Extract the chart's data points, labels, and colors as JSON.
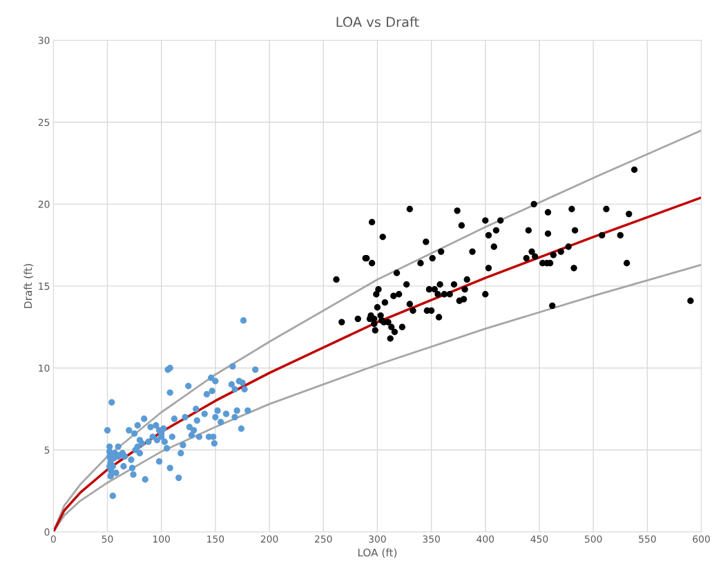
{
  "chart_data": {
    "type": "scatter",
    "title": "LOA vs Draft",
    "xlabel": "LOA (ft)",
    "ylabel": "Draft (ft)",
    "xlim": [
      0,
      600
    ],
    "ylim": [
      0,
      30
    ],
    "xticks": [
      0,
      50,
      100,
      150,
      200,
      250,
      300,
      350,
      400,
      450,
      500,
      550,
      600
    ],
    "yticks": [
      0,
      5,
      10,
      15,
      20,
      25,
      30
    ],
    "grid": true,
    "legend": false,
    "marker": "circle",
    "series": [
      {
        "color": "#5b9bd5",
        "x": [
          50,
          54,
          52,
          52,
          52,
          53,
          53,
          52,
          53,
          54,
          53,
          55,
          55,
          56,
          57,
          58,
          60,
          60,
          62,
          64,
          65,
          66,
          70,
          72,
          73,
          74,
          75,
          76,
          78,
          78,
          80,
          80,
          82,
          84,
          85,
          88,
          90,
          92,
          95,
          96,
          98,
          98,
          100,
          100,
          102,
          103,
          105,
          106,
          108,
          108,
          108,
          110,
          112,
          116,
          118,
          120,
          122,
          125,
          126,
          128,
          130,
          132,
          133,
          135,
          140,
          142,
          144,
          146,
          147,
          148,
          149,
          150,
          150,
          152,
          155,
          160,
          165,
          166,
          168,
          168,
          170,
          172,
          174,
          175,
          176,
          177,
          180,
          187
        ],
        "values": [
          6.2,
          7.9,
          5.2,
          4.9,
          4.6,
          4.4,
          4.2,
          4.0,
          3.8,
          3.6,
          3.4,
          2.2,
          4.0,
          4.5,
          4.8,
          3.6,
          4.6,
          5.2,
          4.7,
          4.8,
          4.0,
          4.6,
          6.2,
          4.4,
          3.9,
          3.5,
          6.0,
          5.0,
          5.2,
          6.5,
          4.8,
          5.6,
          5.4,
          6.9,
          3.2,
          5.5,
          6.4,
          5.8,
          6.5,
          5.6,
          6.2,
          4.3,
          5.8,
          6.0,
          6.3,
          5.5,
          5.1,
          9.9,
          10.0,
          3.9,
          8.5,
          5.8,
          6.9,
          3.3,
          4.8,
          5.3,
          7.0,
          8.9,
          6.4,
          5.9,
          6.2,
          7.5,
          6.8,
          5.8,
          7.2,
          8.4,
          5.8,
          9.4,
          8.6,
          5.8,
          5.4,
          9.2,
          7.0,
          7.4,
          6.7,
          7.2,
          9.0,
          10.1,
          8.7,
          7.0,
          7.4,
          9.2,
          6.3,
          9.1,
          12.9,
          8.7,
          7.4,
          9.9
        ]
      },
      {
        "color": "#000000",
        "x": [
          262,
          267,
          282,
          289,
          290,
          293,
          294,
          295,
          295,
          297,
          297,
          298,
          299,
          300,
          301,
          303,
          304,
          305,
          306,
          307,
          310,
          312,
          313,
          315,
          316,
          318,
          320,
          323,
          327,
          330,
          330,
          333,
          340,
          345,
          346,
          348,
          350,
          351,
          353,
          356,
          357,
          358,
          359,
          362,
          367,
          371,
          374,
          376,
          378,
          380,
          381,
          383,
          388,
          400,
          400,
          403,
          403,
          408,
          410,
          414,
          438,
          440,
          443,
          445,
          446,
          453,
          457,
          458,
          458,
          460,
          462,
          463,
          470,
          477,
          480,
          482,
          483,
          508,
          512,
          525,
          531,
          533,
          538,
          590
        ],
        "values": [
          15.4,
          12.8,
          13.0,
          16.7,
          16.7,
          13.0,
          13.2,
          16.4,
          18.9,
          13.0,
          12.7,
          12.3,
          14.5,
          13.7,
          14.8,
          13.2,
          12.9,
          18.0,
          12.8,
          14.0,
          12.8,
          11.8,
          12.5,
          14.4,
          12.2,
          15.8,
          14.5,
          12.5,
          15.1,
          13.9,
          19.7,
          13.5,
          16.4,
          17.7,
          13.5,
          14.8,
          13.5,
          16.7,
          14.8,
          14.5,
          13.1,
          15.1,
          17.1,
          14.5,
          14.5,
          15.1,
          19.6,
          14.1,
          18.7,
          14.2,
          14.8,
          15.4,
          17.1,
          14.5,
          19.0,
          16.1,
          18.1,
          17.4,
          18.4,
          19.0,
          16.7,
          18.4,
          17.1,
          20.0,
          16.8,
          16.4,
          16.4,
          19.5,
          18.2,
          16.4,
          13.8,
          16.9,
          17.1,
          17.4,
          19.7,
          16.1,
          18.4,
          18.1,
          19.7,
          18.1,
          16.4,
          19.4,
          22.1,
          14.1
        ]
      },
      {
        "type": "line",
        "color": "#a6a6a6",
        "marker": "none",
        "x": [
          0,
          10,
          25,
          50,
          100,
          150,
          200,
          300,
          400,
          500,
          600
        ],
        "values": [
          0,
          1.6,
          2.9,
          4.6,
          7.3,
          9.6,
          11.6,
          15.4,
          18.6,
          21.6,
          24.5
        ]
      },
      {
        "type": "line",
        "color": "#a6a6a6",
        "marker": "none",
        "x": [
          0,
          10,
          25,
          50,
          100,
          150,
          200,
          300,
          400,
          500,
          600
        ],
        "values": [
          0,
          1.0,
          1.9,
          3.0,
          4.9,
          6.4,
          7.8,
          10.2,
          12.4,
          14.4,
          16.3
        ]
      },
      {
        "type": "line",
        "color": "#c00000",
        "marker": "none",
        "x": [
          0,
          10,
          25,
          50,
          100,
          150,
          200,
          300,
          400,
          500,
          600
        ],
        "values": [
          0,
          1.3,
          2.4,
          3.8,
          6.1,
          8.0,
          9.7,
          12.8,
          15.5,
          18.0,
          20.4
        ]
      }
    ]
  }
}
